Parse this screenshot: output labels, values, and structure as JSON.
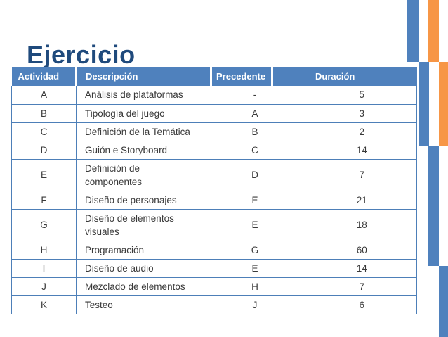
{
  "slide": {
    "title": "Ejercicio"
  },
  "table": {
    "columns": [
      "Actividad",
      "Descripción",
      "Precedente",
      "Duración"
    ],
    "rows": [
      {
        "actividad": "A",
        "descripcion": "Análisis de plataformas",
        "precedente": "-",
        "duracion": "5"
      },
      {
        "actividad": "B",
        "descripcion": "Tipología del juego",
        "precedente": "A",
        "duracion": "3"
      },
      {
        "actividad": "C",
        "descripcion": "Definición de la Temática",
        "precedente": "B",
        "duracion": "2"
      },
      {
        "actividad": "D",
        "descripcion": "Guión e Storyboard",
        "precedente": "C",
        "duracion": "14"
      },
      {
        "actividad": "E",
        "descripcion": "Definición de\ncomponentes",
        "precedente": "D",
        "duracion": "7"
      },
      {
        "actividad": "F",
        "descripcion": "Diseño de personajes",
        "precedente": "E",
        "duracion": "21"
      },
      {
        "actividad": "G",
        "descripcion": "Diseño de elementos\nvisuales",
        "precedente": "E",
        "duracion": "18"
      },
      {
        "actividad": "H",
        "descripcion": "Programación",
        "precedente": "G",
        "duracion": "60"
      },
      {
        "actividad": "I",
        "descripcion": "Diseño de audio",
        "precedente": "E",
        "duracion": "14"
      },
      {
        "actividad": "J",
        "descripcion": "Mezclado de elementos",
        "precedente": "H",
        "duracion": "7"
      },
      {
        "actividad": "K",
        "descripcion": "Testeo",
        "precedente": "J",
        "duracion": "6"
      }
    ]
  },
  "colors": {
    "accent_blue": "#4f81bd",
    "accent_orange": "#f79646",
    "title_blue": "#1f4a7c",
    "border_blue": "#4d7fb8",
    "text_dark": "#3a3a3a",
    "header_text": "#ffffff"
  }
}
